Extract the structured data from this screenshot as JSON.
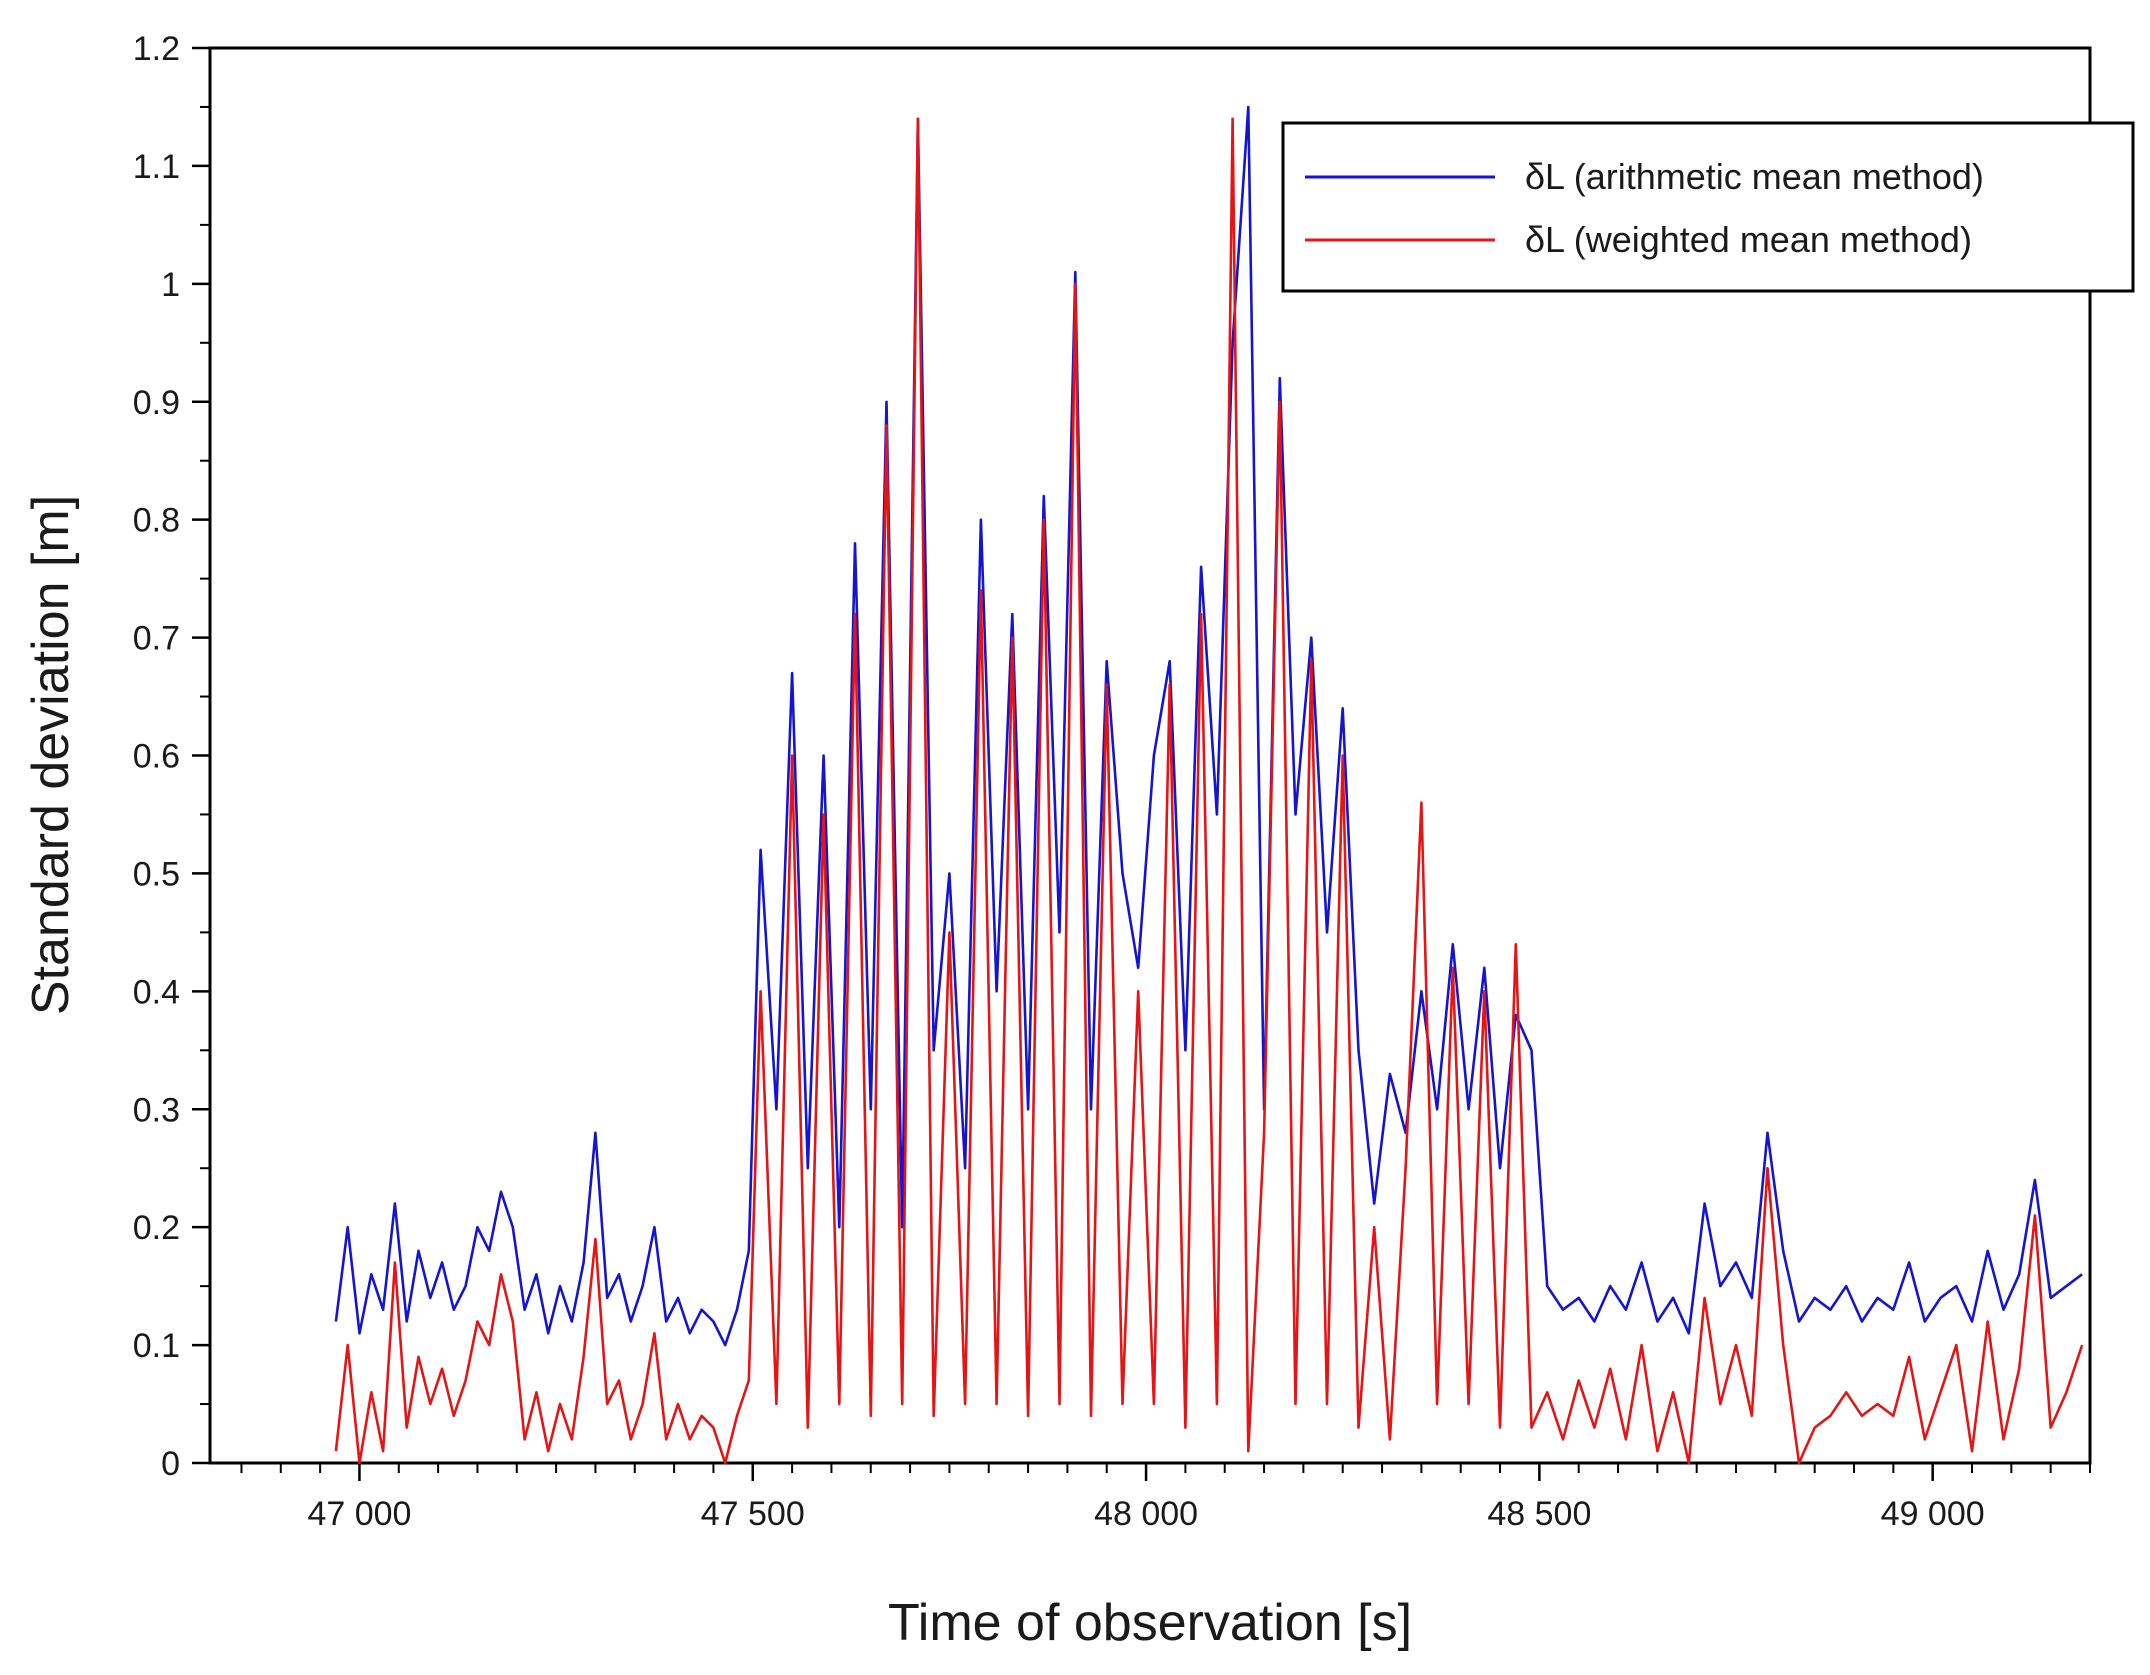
{
  "chart_data": {
    "type": "line",
    "title": "",
    "xlabel": "Time of observation [s]",
    "ylabel": "Standard deviation [m]",
    "xlim": [
      46810,
      49200
    ],
    "ylim": [
      0,
      1.2
    ],
    "x_ticks": [
      47000,
      47500,
      48000,
      48500,
      49000
    ],
    "x_tick_labels": [
      "47 000",
      "47 500",
      "48 000",
      "48 500",
      "49 000"
    ],
    "y_ticks": [
      0,
      0.1,
      0.2,
      0.3,
      0.4,
      0.5,
      0.6,
      0.7,
      0.8,
      0.9,
      1,
      1.1,
      1.2
    ],
    "y_tick_labels": [
      "0",
      "0.1",
      "0.2",
      "0.3",
      "0.4",
      "0.5",
      "0.6",
      "0.7",
      "0.8",
      "0.9",
      "1",
      "1.1",
      "1.2"
    ],
    "grid": false,
    "legend_position": "top-right",
    "series": [
      {
        "name": "δL (arithmetic mean method)",
        "color": "#1515d0",
        "x": [
          46970,
          46985,
          47000,
          47015,
          47030,
          47045,
          47060,
          47075,
          47090,
          47105,
          47120,
          47135,
          47150,
          47165,
          47180,
          47195,
          47210,
          47225,
          47240,
          47255,
          47270,
          47285,
          47300,
          47315,
          47330,
          47345,
          47360,
          47375,
          47390,
          47405,
          47420,
          47435,
          47450,
          47465,
          47480,
          47495,
          47510,
          47530,
          47550,
          47570,
          47590,
          47610,
          47630,
          47650,
          47670,
          47690,
          47710,
          47730,
          47750,
          47770,
          47790,
          47810,
          47830,
          47850,
          47870,
          47890,
          47910,
          47930,
          47950,
          47970,
          47990,
          48010,
          48030,
          48050,
          48070,
          48090,
          48110,
          48130,
          48150,
          48170,
          48190,
          48210,
          48230,
          48250,
          48270,
          48290,
          48310,
          48330,
          48350,
          48370,
          48390,
          48410,
          48430,
          48450,
          48470,
          48490,
          48510,
          48530,
          48550,
          48570,
          48590,
          48610,
          48630,
          48650,
          48670,
          48690,
          48710,
          48730,
          48750,
          48770,
          48790,
          48810,
          48830,
          48850,
          48870,
          48890,
          48910,
          48930,
          48950,
          48970,
          48990,
          49010,
          49030,
          49050,
          49070,
          49090,
          49110,
          49130,
          49150,
          49170,
          49190
        ],
        "y": [
          0.12,
          0.2,
          0.11,
          0.16,
          0.13,
          0.22,
          0.12,
          0.18,
          0.14,
          0.17,
          0.13,
          0.15,
          0.2,
          0.18,
          0.23,
          0.2,
          0.13,
          0.16,
          0.11,
          0.15,
          0.12,
          0.17,
          0.28,
          0.14,
          0.16,
          0.12,
          0.15,
          0.2,
          0.12,
          0.14,
          0.11,
          0.13,
          0.12,
          0.1,
          0.13,
          0.18,
          0.52,
          0.3,
          0.67,
          0.25,
          0.6,
          0.2,
          0.78,
          0.3,
          0.9,
          0.2,
          1.14,
          0.35,
          0.5,
          0.25,
          0.8,
          0.4,
          0.72,
          0.3,
          0.82,
          0.45,
          1.01,
          0.3,
          0.68,
          0.5,
          0.42,
          0.6,
          0.68,
          0.35,
          0.76,
          0.55,
          0.95,
          1.15,
          0.3,
          0.92,
          0.55,
          0.7,
          0.45,
          0.64,
          0.35,
          0.22,
          0.33,
          0.28,
          0.4,
          0.3,
          0.44,
          0.3,
          0.42,
          0.25,
          0.38,
          0.35,
          0.15,
          0.13,
          0.14,
          0.12,
          0.15,
          0.13,
          0.17,
          0.12,
          0.14,
          0.11,
          0.22,
          0.15,
          0.17,
          0.14,
          0.28,
          0.18,
          0.12,
          0.14,
          0.13,
          0.15,
          0.12,
          0.14,
          0.13,
          0.17,
          0.12,
          0.14,
          0.15,
          0.12,
          0.18,
          0.13,
          0.16,
          0.24,
          0.14,
          0.15,
          0.16
        ]
      },
      {
        "name": "δL (weighted mean method)",
        "color": "#e51515",
        "x": [
          46970,
          46985,
          47000,
          47015,
          47030,
          47045,
          47060,
          47075,
          47090,
          47105,
          47120,
          47135,
          47150,
          47165,
          47180,
          47195,
          47210,
          47225,
          47240,
          47255,
          47270,
          47285,
          47300,
          47315,
          47330,
          47345,
          47360,
          47375,
          47390,
          47405,
          47420,
          47435,
          47450,
          47465,
          47480,
          47495,
          47510,
          47530,
          47550,
          47570,
          47590,
          47610,
          47630,
          47650,
          47670,
          47690,
          47710,
          47730,
          47750,
          47770,
          47790,
          47810,
          47830,
          47850,
          47870,
          47890,
          47910,
          47930,
          47950,
          47970,
          47990,
          48010,
          48030,
          48050,
          48070,
          48090,
          48110,
          48130,
          48150,
          48170,
          48190,
          48210,
          48230,
          48250,
          48270,
          48290,
          48310,
          48330,
          48350,
          48370,
          48390,
          48410,
          48430,
          48450,
          48470,
          48490,
          48510,
          48530,
          48550,
          48570,
          48590,
          48610,
          48630,
          48650,
          48670,
          48690,
          48710,
          48730,
          48750,
          48770,
          48790,
          48810,
          48830,
          48850,
          48870,
          48890,
          48910,
          48930,
          48950,
          48970,
          48990,
          49010,
          49030,
          49050,
          49070,
          49090,
          49110,
          49130,
          49150,
          49170,
          49190
        ],
        "y": [
          0.01,
          0.1,
          0.0,
          0.06,
          0.01,
          0.17,
          0.03,
          0.09,
          0.05,
          0.08,
          0.04,
          0.07,
          0.12,
          0.1,
          0.16,
          0.12,
          0.02,
          0.06,
          0.01,
          0.05,
          0.02,
          0.09,
          0.19,
          0.05,
          0.07,
          0.02,
          0.05,
          0.11,
          0.02,
          0.05,
          0.02,
          0.04,
          0.03,
          0.0,
          0.04,
          0.07,
          0.4,
          0.05,
          0.6,
          0.03,
          0.55,
          0.05,
          0.72,
          0.04,
          0.88,
          0.05,
          1.14,
          0.04,
          0.45,
          0.05,
          0.74,
          0.05,
          0.7,
          0.04,
          0.8,
          0.05,
          1.0,
          0.04,
          0.66,
          0.05,
          0.4,
          0.05,
          0.66,
          0.03,
          0.72,
          0.05,
          1.14,
          0.01,
          0.28,
          0.9,
          0.05,
          0.68,
          0.05,
          0.6,
          0.03,
          0.2,
          0.02,
          0.25,
          0.56,
          0.05,
          0.42,
          0.05,
          0.4,
          0.03,
          0.44,
          0.03,
          0.06,
          0.02,
          0.07,
          0.03,
          0.08,
          0.02,
          0.1,
          0.01,
          0.06,
          0.0,
          0.14,
          0.05,
          0.1,
          0.04,
          0.25,
          0.1,
          0.0,
          0.03,
          0.04,
          0.06,
          0.04,
          0.05,
          0.04,
          0.09,
          0.02,
          0.06,
          0.1,
          0.01,
          0.12,
          0.02,
          0.08,
          0.21,
          0.03,
          0.06,
          0.1
        ]
      }
    ]
  }
}
